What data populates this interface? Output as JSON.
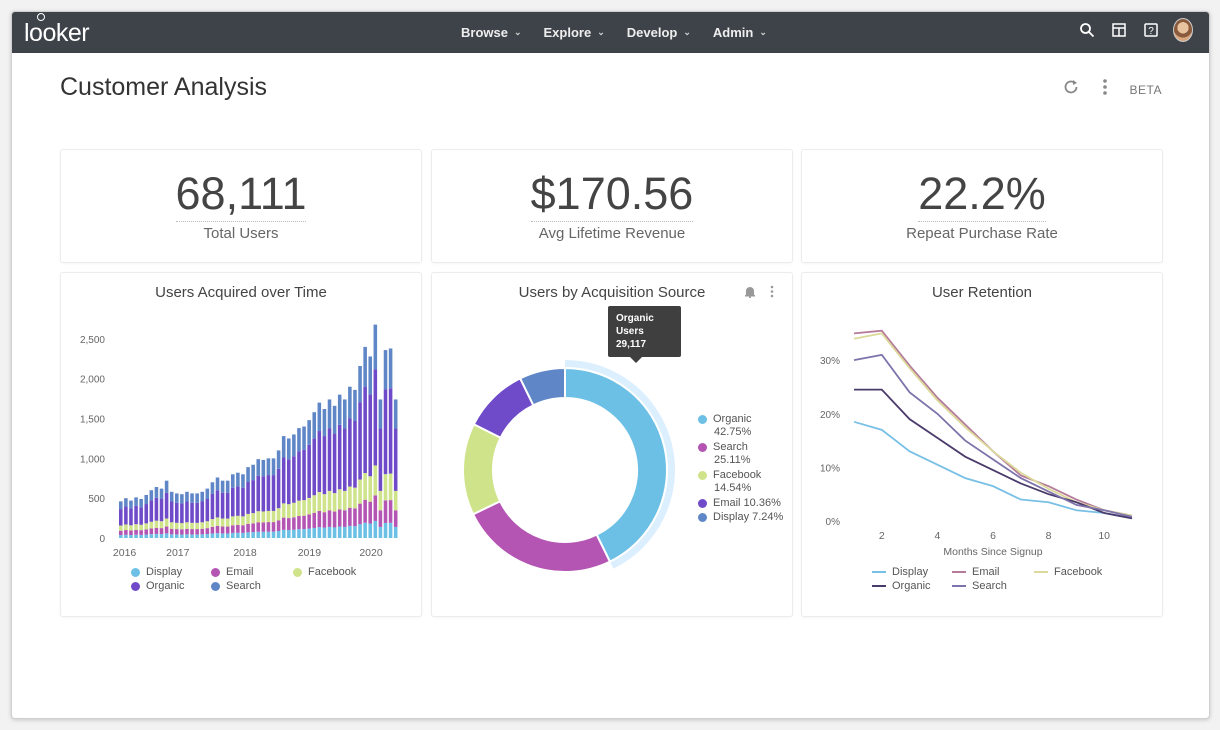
{
  "app": {
    "logo_text": "looker"
  },
  "nav": [
    {
      "label": "Browse"
    },
    {
      "label": "Explore"
    },
    {
      "label": "Develop"
    },
    {
      "label": "Admin"
    }
  ],
  "dashboard": {
    "title": "Customer Analysis",
    "beta_label": "BETA"
  },
  "kpis": [
    {
      "value": "68,111",
      "label": "Total Users"
    },
    {
      "value": "$170.56",
      "label": "Avg Lifetime Revenue"
    },
    {
      "value": "22.2%",
      "label": "Repeat Purchase Rate"
    }
  ],
  "colors": {
    "display": "#6cc0e5",
    "email": "#b455b4",
    "facebook": "#cfe38a",
    "organic": "#6f4bc9",
    "search": "#5f87c7",
    "retention_display": "#79c0e6",
    "retention_email": "#b57b9a",
    "retention_facebook": "#dcd99a",
    "retention_organic": "#4a3b6b",
    "retention_search": "#7e73aa"
  },
  "tooltip": {
    "line1": "Organic",
    "line2": "Users",
    "line3": "29,117"
  },
  "chart_data": [
    {
      "type": "bar",
      "stacked": true,
      "title": "Users Acquired over Time",
      "x_ticks": [
        "2016",
        "2017",
        "2018",
        "2019",
        "2020"
      ],
      "y_ticks": [
        "0",
        "500",
        "1,000",
        "1,500",
        "2,000",
        "2,500"
      ],
      "ylim": [
        0,
        2700
      ],
      "series_order": [
        "Display",
        "Email",
        "Facebook",
        "Organic",
        "Search"
      ],
      "totals": [
        460,
        500,
        470,
        510,
        490,
        540,
        600,
        640,
        620,
        720,
        580,
        560,
        550,
        580,
        560,
        560,
        580,
        620,
        700,
        760,
        720,
        720,
        800,
        820,
        800,
        890,
        920,
        990,
        980,
        1000,
        1000,
        1100,
        1280,
        1250,
        1300,
        1380,
        1400,
        1480,
        1580,
        1700,
        1620,
        1740,
        1660,
        1800,
        1740,
        1900,
        1860,
        2160,
        2400,
        2280,
        2680,
        1740,
        2360,
        2380,
        1740
      ],
      "shares": {
        "Display": 0.08,
        "Email": 0.12,
        "Facebook": 0.14,
        "Organic": 0.45,
        "Search": 0.21
      },
      "legend": [
        {
          "name": "Display",
          "key": "display"
        },
        {
          "name": "Email",
          "key": "email"
        },
        {
          "name": "Facebook",
          "key": "facebook"
        },
        {
          "name": "Organic",
          "key": "organic"
        },
        {
          "name": "Search",
          "key": "search"
        }
      ]
    },
    {
      "type": "pie",
      "donut": true,
      "title": "Users by Acquisition Source",
      "slices": [
        {
          "name": "Organic",
          "value": 42.75,
          "label": "Organic",
          "pct": "42.75%",
          "key": "display"
        },
        {
          "name": "Search",
          "value": 25.11,
          "label": "Search",
          "pct": "25.11%",
          "key": "email"
        },
        {
          "name": "Facebook",
          "value": 14.54,
          "label": "Facebook",
          "pct": "14.54%",
          "key": "facebook"
        },
        {
          "name": "Email",
          "value": 10.36,
          "label": "Email 10.36%",
          "pct": "",
          "key": "organic"
        },
        {
          "name": "Display",
          "value": 7.24,
          "label": "Display 7.24%",
          "pct": "",
          "key": "search"
        }
      ]
    },
    {
      "type": "line",
      "title": "User Retention",
      "xlabel": "Months Since Signup",
      "x_ticks": [
        "2",
        "4",
        "6",
        "8",
        "10"
      ],
      "y_ticks": [
        "0%",
        "10%",
        "20%",
        "30%"
      ],
      "xlim": [
        1,
        11
      ],
      "ylim": [
        0,
        36
      ],
      "x": [
        1,
        2,
        3,
        4,
        5,
        6,
        7,
        8,
        9,
        10,
        11
      ],
      "series": [
        {
          "name": "Display",
          "key": "retention_display",
          "values": [
            18.5,
            17.0,
            13.0,
            10.5,
            8.0,
            6.5,
            4.0,
            3.5,
            2.0,
            1.5,
            0.5
          ]
        },
        {
          "name": "Email",
          "key": "retention_email",
          "values": [
            35.0,
            35.5,
            29.0,
            23.0,
            18.0,
            13.0,
            8.5,
            6.5,
            4.0,
            2.0,
            1.0
          ]
        },
        {
          "name": "Facebook",
          "key": "retention_facebook",
          "values": [
            34.0,
            35.0,
            28.5,
            22.5,
            17.5,
            13.0,
            9.0,
            6.0,
            3.5,
            2.0,
            1.0
          ]
        },
        {
          "name": "Organic",
          "key": "retention_organic",
          "values": [
            24.5,
            24.5,
            19.0,
            15.5,
            12.0,
            9.5,
            7.0,
            5.0,
            3.5,
            1.5,
            0.5
          ]
        },
        {
          "name": "Search",
          "key": "retention_search",
          "values": [
            30.0,
            31.0,
            24.0,
            20.0,
            15.0,
            11.5,
            8.0,
            5.5,
            3.0,
            2.0,
            0.8
          ]
        }
      ]
    }
  ]
}
